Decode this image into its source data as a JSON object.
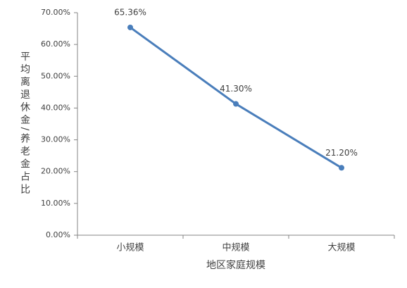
{
  "chart_data": {
    "type": "line",
    "y_label": "平均离退休金/养老金占比",
    "x_label": "地区家庭规模",
    "categories": [
      "小规模",
      "中规模",
      "大规模"
    ],
    "values": [
      65.36,
      41.3,
      21.2
    ],
    "value_labels": [
      "65.36%",
      "41.30%",
      "21.20%"
    ],
    "color": "#4a7ebb",
    "ylim": [
      0,
      70
    ],
    "yticks": [
      {
        "value": 0,
        "label": "0.00%"
      },
      {
        "value": 10,
        "label": "10.00%"
      },
      {
        "value": 20,
        "label": "20.00%"
      },
      {
        "value": 30,
        "label": "30.00%"
      },
      {
        "value": 40,
        "label": "40.00%"
      },
      {
        "value": 50,
        "label": "50.00%"
      },
      {
        "value": 60,
        "label": "60.00%"
      },
      {
        "value": 70,
        "label": "70.00%"
      }
    ],
    "grid": false
  }
}
